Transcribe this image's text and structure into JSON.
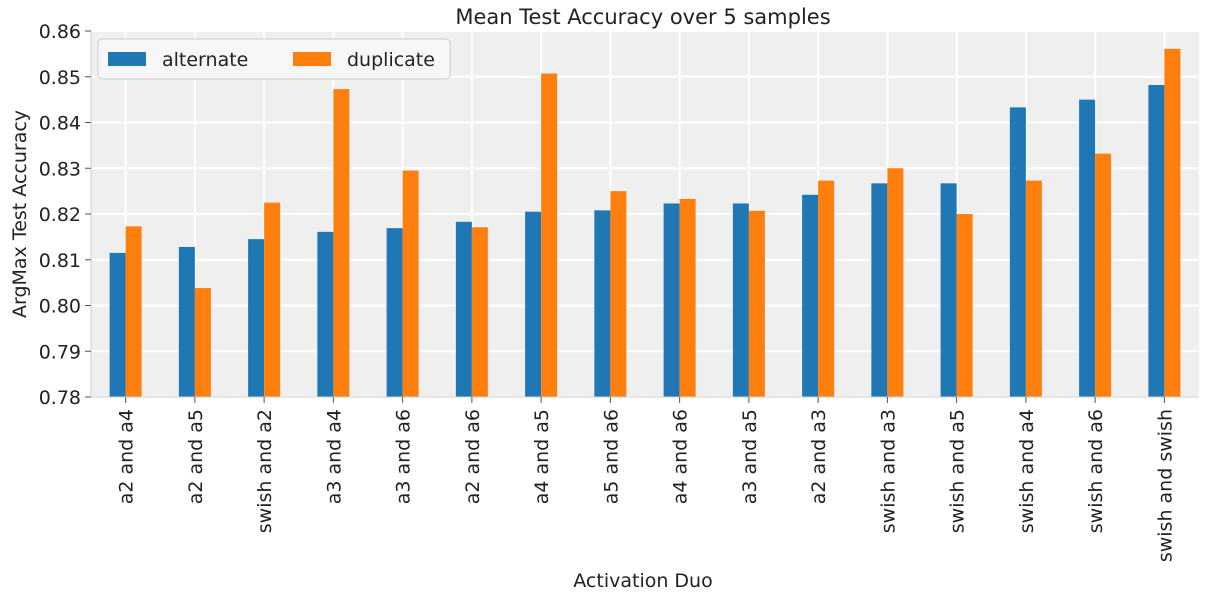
{
  "chart_data": {
    "type": "bar",
    "title": "Mean Test Accuracy over 5 samples",
    "xlabel": "Activation Duo",
    "ylabel": "ArgMax Test Accuracy",
    "ylim": [
      0.78,
      0.86
    ],
    "yticks": [
      "0.78",
      "0.79",
      "0.80",
      "0.81",
      "0.82",
      "0.83",
      "0.84",
      "0.85",
      "0.86"
    ],
    "grid": true,
    "legend_position": "top-left",
    "categories": [
      "a2 and a4",
      "a2 and a5",
      "swish and a2",
      "a3 and a4",
      "a3 and a6",
      "a2 and a6",
      "a4 and a5",
      "a5 and a6",
      "a4 and a6",
      "a3 and a5",
      "a2 and a3",
      "swish and a3",
      "swish and a5",
      "swish and a4",
      "swish and a6",
      "swish and swish"
    ],
    "series": [
      {
        "name": "alternate",
        "color": "#1f77b4",
        "values": [
          0.8115,
          0.8128,
          0.8145,
          0.8161,
          0.8169,
          0.8183,
          0.8205,
          0.8208,
          0.8223,
          0.8223,
          0.8242,
          0.8267,
          0.8267,
          0.8433,
          0.845,
          0.8482
        ]
      },
      {
        "name": "duplicate",
        "color": "#ff7f0e",
        "values": [
          0.8173,
          0.8038,
          0.8225,
          0.8473,
          0.8295,
          0.8171,
          0.8507,
          0.825,
          0.8233,
          0.8207,
          0.8273,
          0.83,
          0.82,
          0.8273,
          0.8332,
          0.8561
        ]
      }
    ],
    "colors": {
      "plot_background": "#efefef",
      "grid": "#ffffff",
      "axis": "#cccccc"
    }
  }
}
